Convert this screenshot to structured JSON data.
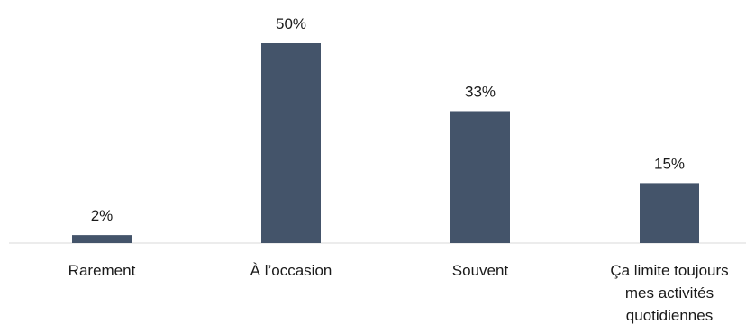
{
  "chart_data": {
    "type": "bar",
    "categories": [
      [
        "Rarement"
      ],
      [
        "À l’occasion"
      ],
      [
        "Souvent"
      ],
      [
        "Ça limite toujours",
        "mes activités",
        "quotidiennes"
      ]
    ],
    "values": [
      2,
      50,
      33,
      15
    ],
    "value_labels": [
      "2%",
      "50%",
      "33%",
      "15%"
    ],
    "unit": "%",
    "title": "",
    "xlabel": "",
    "ylabel": "",
    "ylim": [
      0,
      50
    ],
    "grid": false,
    "legend": "none",
    "bar_color": "#44546a",
    "axis_color": "#d9d9d9"
  }
}
